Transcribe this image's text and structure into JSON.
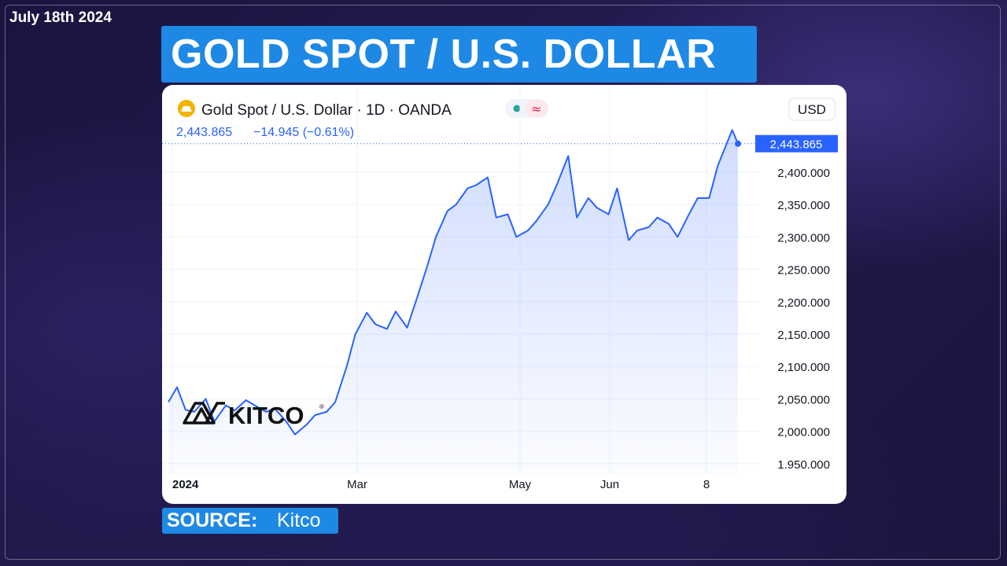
{
  "date": "July 18th 2024",
  "headline": "GOLD SPOT / U.S. DOLLAR",
  "source": {
    "label": "SOURCE:",
    "value": "Kitco"
  },
  "colors": {
    "accent": "#1e88e5",
    "line": "#2962ff"
  },
  "chart_header": {
    "symbol_title": "Gold Spot / U.S. Dollar · 1D · OANDA",
    "price": "2,443.865",
    "change": "−14.945 (−0.61%)",
    "currency": "USD",
    "icon_name": "gold-bar-icon"
  },
  "watermark": "KITCO",
  "chart_data": {
    "type": "area",
    "title": "Gold Spot / U.S. Dollar · 1D · OANDA",
    "xlabel": "",
    "ylabel": "",
    "ylim": [
      1950,
      2480
    ],
    "x_tick_labels": [
      "2024",
      "Mar",
      "May",
      "Jun",
      "8"
    ],
    "y_tick_labels": [
      "2,400.000",
      "2,350.000",
      "2,300.000",
      "2,250.000",
      "2,200.000",
      "2,150.000",
      "2,100.000",
      "2,050.000",
      "2,000.000",
      "1.950.000"
    ],
    "last_value_label": "2,443.865",
    "grid": true,
    "series": [
      {
        "x": [
          "2024-01-02",
          "2024-01-05",
          "2024-01-08",
          "2024-01-11",
          "2024-01-15",
          "2024-01-18",
          "2024-01-22",
          "2024-01-25",
          "2024-01-29",
          "2024-02-01",
          "2024-02-05",
          "2024-02-08",
          "2024-02-12",
          "2024-02-15",
          "2024-02-19",
          "2024-02-22",
          "2024-02-26",
          "2024-02-29",
          "2024-03-04",
          "2024-03-07",
          "2024-03-11",
          "2024-03-14",
          "2024-03-18",
          "2024-03-21",
          "2024-03-25",
          "2024-03-28",
          "2024-04-01",
          "2024-04-04",
          "2024-04-08",
          "2024-04-11",
          "2024-04-15",
          "2024-04-18",
          "2024-04-22",
          "2024-04-25",
          "2024-04-29",
          "2024-05-02",
          "2024-05-06",
          "2024-05-09",
          "2024-05-13",
          "2024-05-16",
          "2024-05-20",
          "2024-05-23",
          "2024-05-27",
          "2024-05-30",
          "2024-06-03",
          "2024-06-06",
          "2024-06-10",
          "2024-06-13",
          "2024-06-17",
          "2024-06-20",
          "2024-06-24",
          "2024-06-27",
          "2024-07-01",
          "2024-07-04",
          "2024-07-08",
          "2024-07-11",
          "2024-07-16",
          "2024-07-18"
        ],
        "values": [
          2045,
          2068,
          2033,
          2030,
          2050,
          2015,
          2040,
          2032,
          2048,
          2040,
          2030,
          2035,
          2015,
          1995,
          2010,
          2025,
          2030,
          2045,
          2100,
          2150,
          2183,
          2165,
          2158,
          2185,
          2160,
          2200,
          2255,
          2300,
          2340,
          2350,
          2375,
          2380,
          2392,
          2330,
          2335,
          2300,
          2310,
          2325,
          2350,
          2380,
          2425,
          2330,
          2360,
          2345,
          2335,
          2375,
          2295,
          2310,
          2315,
          2330,
          2320,
          2300,
          2335,
          2360,
          2360,
          2410,
          2465,
          2444
        ]
      }
    ]
  }
}
